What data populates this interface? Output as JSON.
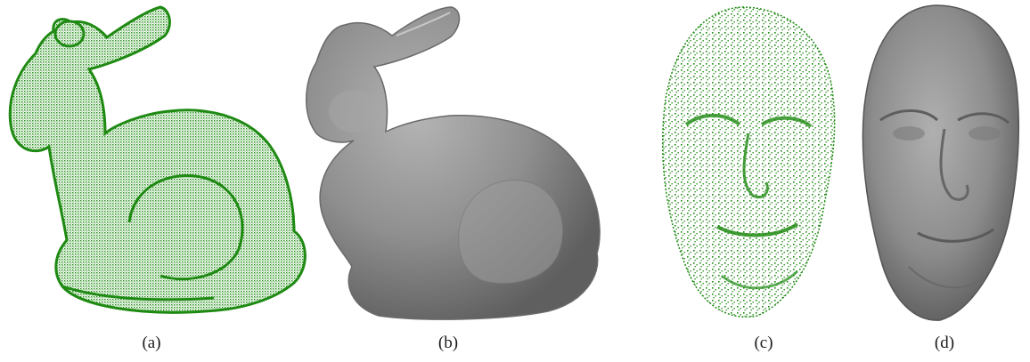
{
  "figure": {
    "panels": [
      {
        "id": "a",
        "caption": "(a)",
        "content": "point-cloud-bunny",
        "color": "#1e8a12"
      },
      {
        "id": "b",
        "caption": "(b)",
        "content": "mesh-bunny",
        "color": "#8a8a8a"
      },
      {
        "id": "c",
        "caption": "(c)",
        "content": "point-cloud-face",
        "color": "#1e8a12"
      },
      {
        "id": "d",
        "caption": "(d)",
        "content": "mesh-face",
        "color": "#8a8a8a"
      }
    ]
  }
}
